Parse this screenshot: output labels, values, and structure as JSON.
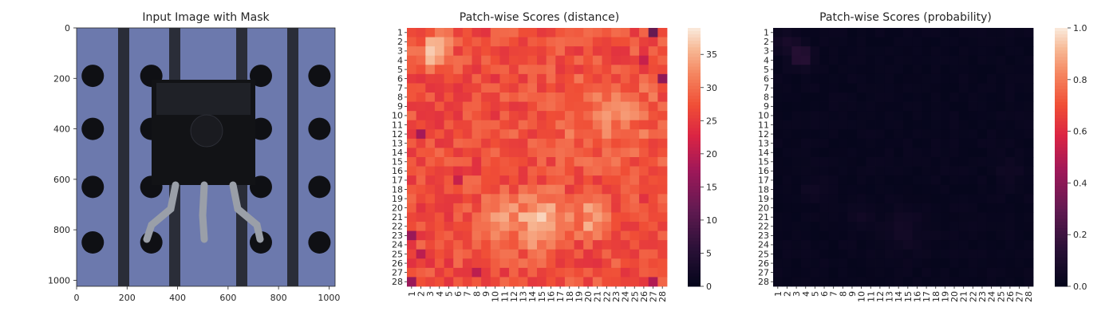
{
  "figure": {
    "panel1_title": "Input Image with Mask",
    "panel2_title": "Patch-wise Scores (distance)",
    "panel3_title": "Patch-wise Scores (probability)"
  },
  "image_panel": {
    "xticks": [
      0,
      200,
      400,
      600,
      800,
      1000
    ],
    "yticks": [
      0,
      200,
      400,
      600,
      800,
      1000
    ],
    "extent": [
      0,
      1024
    ],
    "content": "photo of a black 3-lead transistor package on a blue perforated board with dark vertical stripes"
  },
  "chart_data": [
    {
      "type": "heatmap",
      "title": "Patch-wise Scores (distance)",
      "rows": [
        "1",
        "2",
        "3",
        "4",
        "5",
        "6",
        "7",
        "8",
        "9",
        "10",
        "11",
        "12",
        "13",
        "14",
        "15",
        "16",
        "17",
        "18",
        "19",
        "20",
        "21",
        "22",
        "23",
        "24",
        "25",
        "26",
        "27",
        "28"
      ],
      "cols": [
        "1",
        "2",
        "3",
        "4",
        "5",
        "6",
        "7",
        "8",
        "9",
        "10",
        "11",
        "12",
        "13",
        "14",
        "15",
        "16",
        "17",
        "18",
        "19",
        "20",
        "21",
        "22",
        "23",
        "24",
        "25",
        "26",
        "27",
        "28"
      ],
      "colorbar": {
        "min": 0,
        "max": 39,
        "ticks": [
          0,
          5,
          10,
          15,
          20,
          25,
          30,
          35
        ]
      },
      "colormap": "rocket",
      "base_value": 27,
      "hotspots": [
        {
          "row": 3,
          "col": 3.5,
          "value": 39,
          "sx": 1.1,
          "sy": 1.0
        },
        {
          "row": 21.5,
          "col": 15,
          "value": 37,
          "sx": 1.8,
          "sy": 2.0
        },
        {
          "row": 21,
          "col": 10.5,
          "value": 34,
          "sx": 1.3,
          "sy": 1.8
        },
        {
          "row": 21,
          "col": 20.5,
          "value": 34,
          "sx": 1.2,
          "sy": 1.5
        },
        {
          "row": 10,
          "col": 22,
          "value": 31,
          "sx": 4.5,
          "sy": 3.0
        }
      ],
      "low_cells": [
        {
          "row": 1,
          "col": 27,
          "value": 12
        },
        {
          "row": 6,
          "col": 28,
          "value": 16
        },
        {
          "row": 12,
          "col": 2,
          "value": 18
        },
        {
          "row": 23,
          "col": 1,
          "value": 17
        },
        {
          "row": 28,
          "col": 1,
          "value": 17
        },
        {
          "row": 25,
          "col": 2,
          "value": 20
        },
        {
          "row": 28,
          "col": 27,
          "value": 19
        },
        {
          "row": 17,
          "col": 6,
          "value": 21
        },
        {
          "row": 27,
          "col": 8,
          "value": 20
        },
        {
          "row": 4,
          "col": 26,
          "value": 21
        }
      ]
    },
    {
      "type": "heatmap",
      "title": "Patch-wise Scores (probability)",
      "rows": [
        "1",
        "2",
        "3",
        "4",
        "5",
        "6",
        "7",
        "8",
        "9",
        "10",
        "11",
        "12",
        "13",
        "14",
        "15",
        "16",
        "17",
        "18",
        "19",
        "20",
        "21",
        "22",
        "23",
        "24",
        "25",
        "26",
        "27",
        "28"
      ],
      "cols": [
        "1",
        "2",
        "3",
        "4",
        "5",
        "6",
        "7",
        "8",
        "9",
        "10",
        "11",
        "12",
        "13",
        "14",
        "15",
        "16",
        "17",
        "18",
        "19",
        "20",
        "21",
        "22",
        "23",
        "24",
        "25",
        "26",
        "27",
        "28"
      ],
      "colorbar": {
        "min": 0.0,
        "max": 1.0,
        "ticks": [
          "0.0",
          "0.2",
          "0.4",
          "0.6",
          "0.8",
          "1.0"
        ]
      },
      "colormap": "rocket",
      "base_value": 0.02,
      "hotspots": [
        {
          "row": 3.5,
          "col": 3.5,
          "value": 0.17,
          "sx": 0.7,
          "sy": 0.8
        },
        {
          "row": 2,
          "col": 2,
          "value": 0.08,
          "sx": 0.8,
          "sy": 0.8
        },
        {
          "row": 22.5,
          "col": 14.5,
          "value": 0.06,
          "sx": 1.5,
          "sy": 1.6
        },
        {
          "row": 18,
          "col": 5,
          "value": 0.05,
          "sx": 1.0,
          "sy": 1.0
        },
        {
          "row": 16,
          "col": 26,
          "value": 0.05,
          "sx": 1.0,
          "sy": 1.0
        },
        {
          "row": 21,
          "col": 10,
          "value": 0.05,
          "sx": 0.8,
          "sy": 0.8
        }
      ]
    }
  ]
}
